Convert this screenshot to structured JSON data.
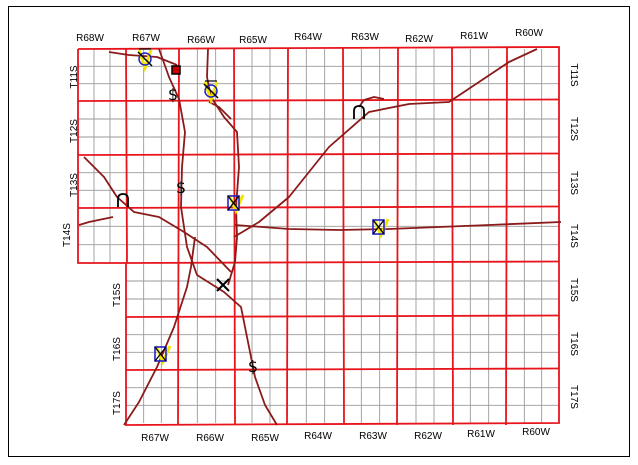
{
  "map": {
    "range_labels_top": [
      "R68W",
      "R67W",
      "R66W",
      "R65W",
      "R64W",
      "R63W",
      "R62W",
      "R61W",
      "R60W"
    ],
    "range_labels_bottom": [
      "R67W",
      "R66W",
      "R65W",
      "R64W",
      "R63W",
      "R62W",
      "R61W",
      "R60W"
    ],
    "township_labels_left": [
      "T11S",
      "T12S",
      "T13S",
      "T14S",
      "T15S",
      "T16S",
      "T17S"
    ],
    "township_labels_right": [
      "T11S",
      "T12S",
      "T13S",
      "T14S",
      "T15S",
      "T16S",
      "T17S"
    ],
    "colors": {
      "township_grid": "#e8141b",
      "section_grid": "#9a9a9a",
      "roads": "#8b1a1a",
      "symbols": "#000000",
      "symbol_fill_blue": "#2323c8",
      "symbol_fill_yellow": "#f2e600",
      "marker_square": "#cc0000"
    },
    "symbols": [
      {
        "type": "crossed-yellow-v",
        "icon": "crossed-circle-icon"
      },
      {
        "type": "red-square",
        "icon": "square-marker-icon"
      },
      {
        "type": "dollar",
        "icon": "dollar-icon"
      },
      {
        "type": "crossed-yellow-v",
        "icon": "crossed-circle-icon"
      },
      {
        "type": "arch",
        "icon": "arch-icon"
      },
      {
        "type": "dollar",
        "icon": "dollar-icon"
      },
      {
        "type": "arch",
        "icon": "arch-icon"
      },
      {
        "type": "crossed-box-v",
        "icon": "crossed-box-icon"
      },
      {
        "type": "crossed-box-v",
        "icon": "crossed-box-icon"
      },
      {
        "type": "x-mark",
        "icon": "x-mark-icon"
      },
      {
        "type": "crossed-box-v",
        "icon": "crossed-box-icon"
      },
      {
        "type": "dollar",
        "icon": "dollar-icon"
      }
    ]
  }
}
